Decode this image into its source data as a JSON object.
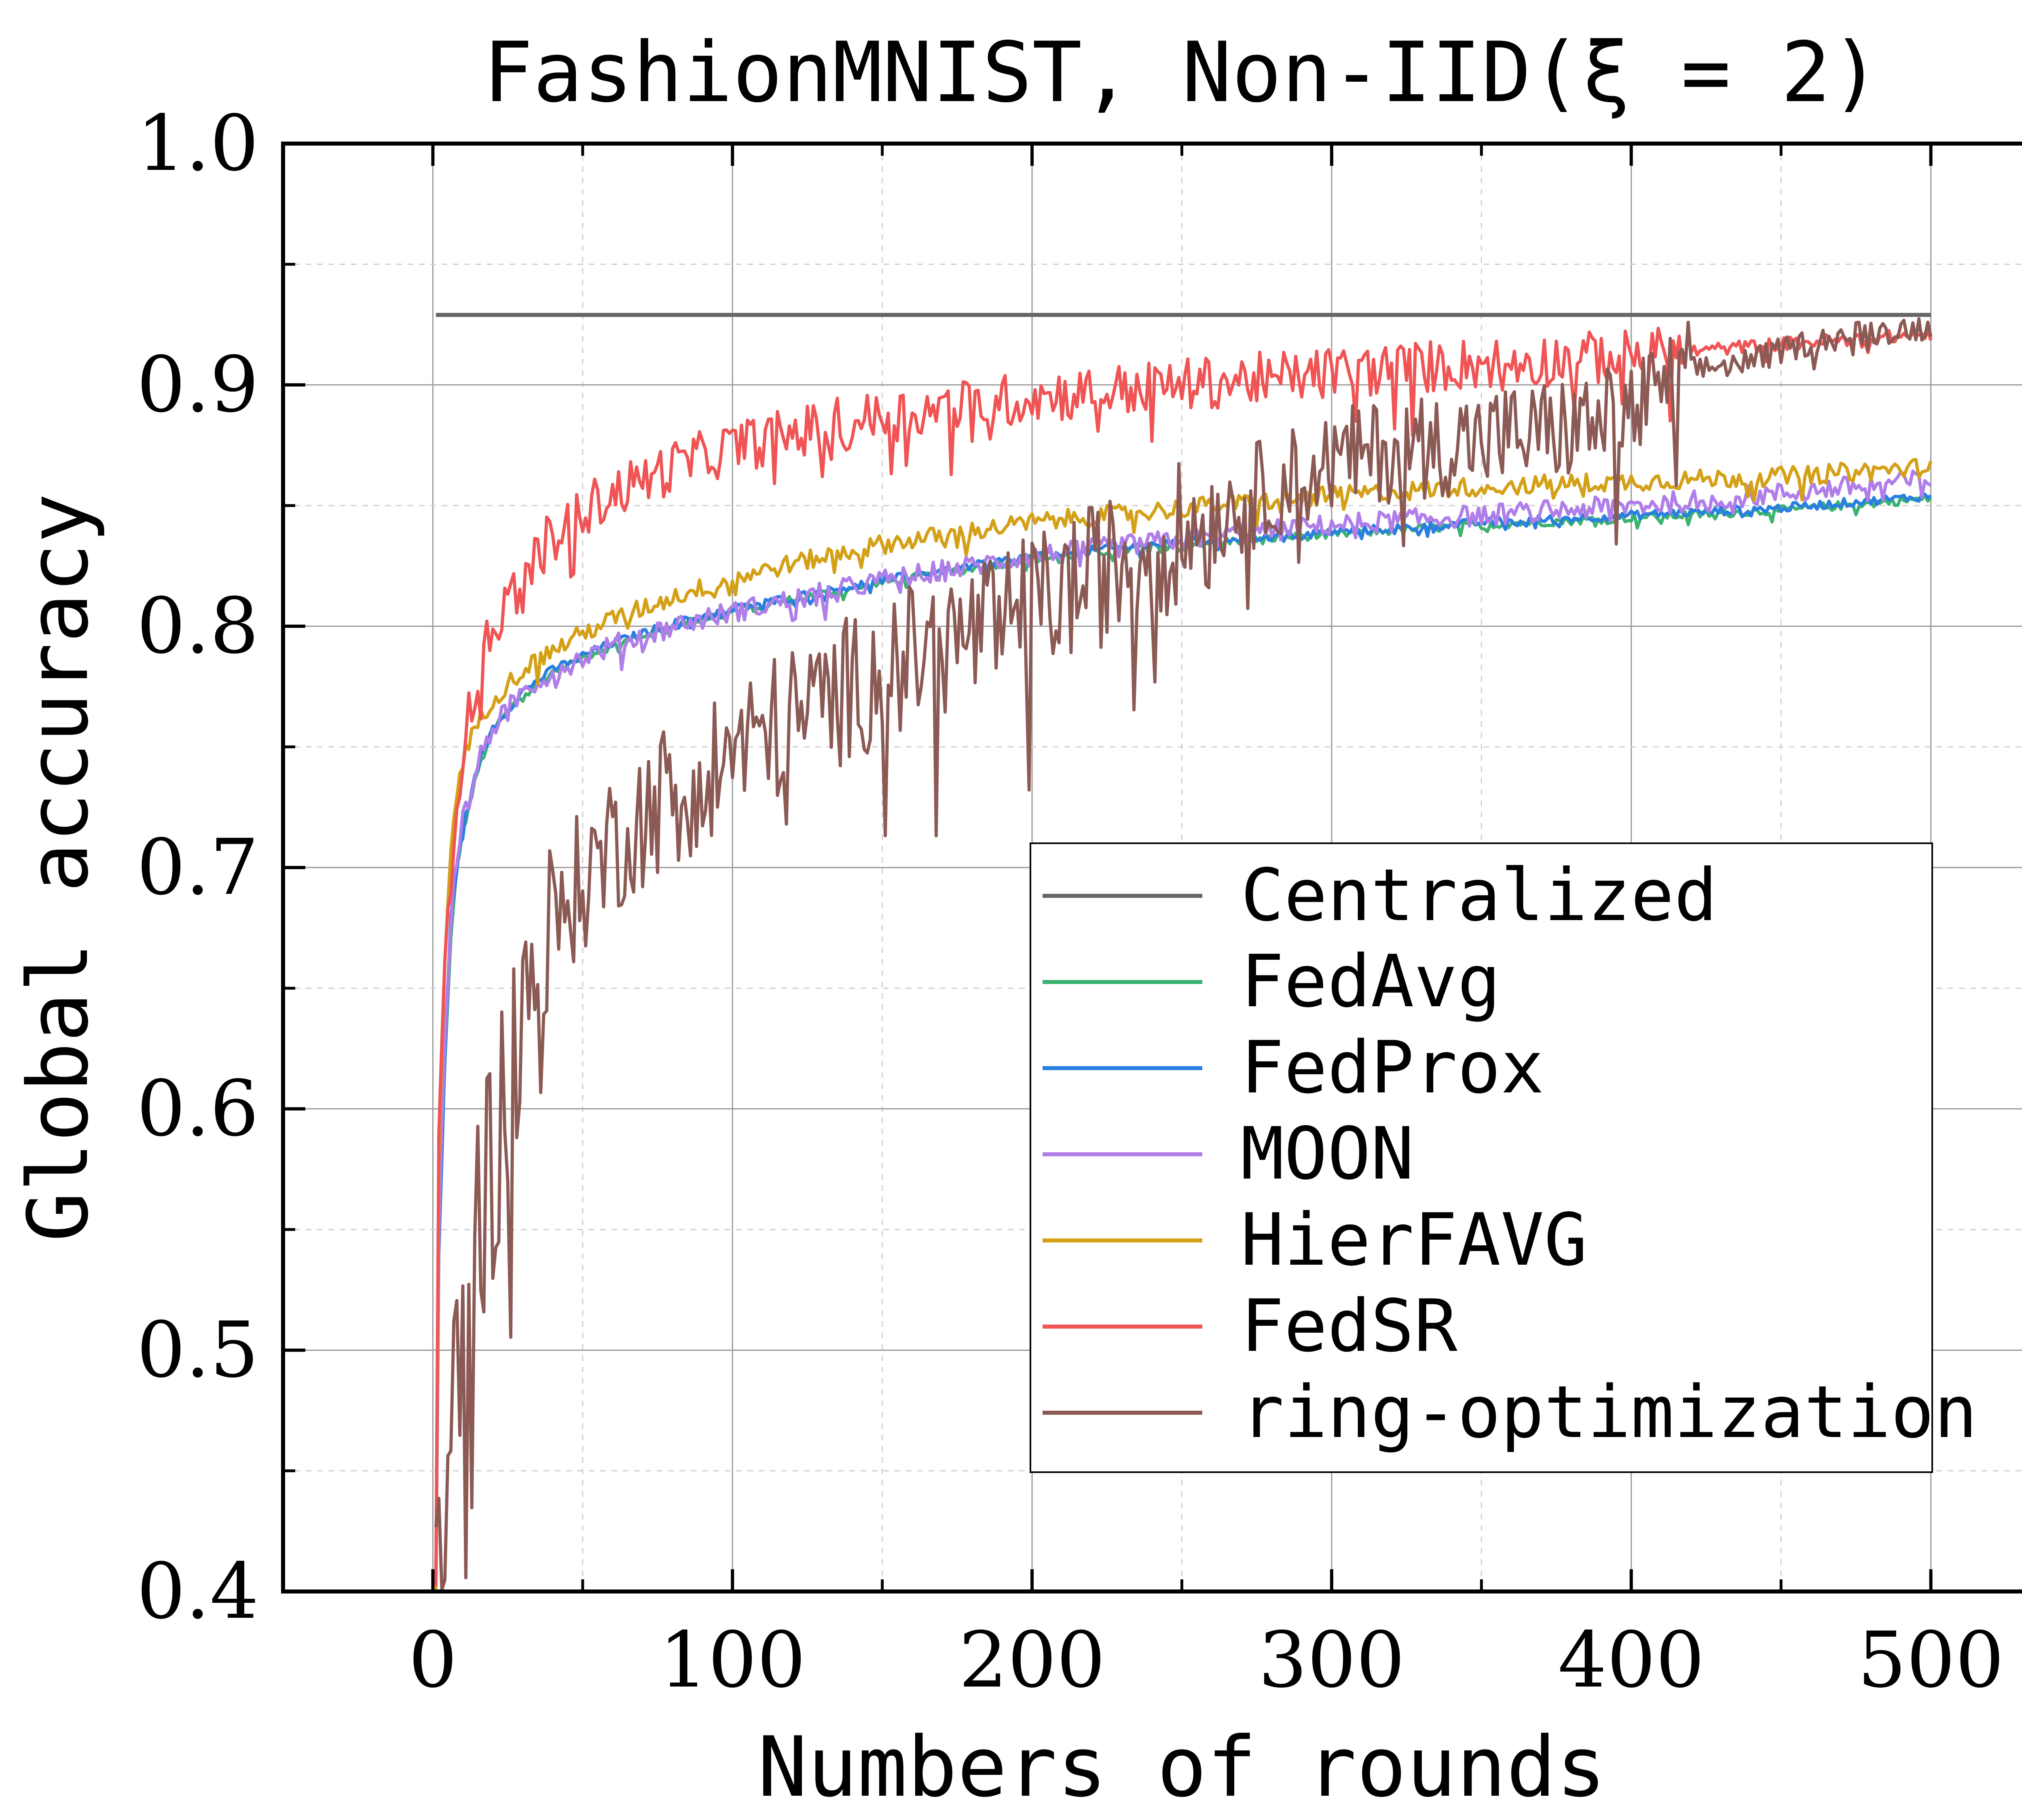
{
  "chart_data": {
    "type": "line",
    "title": "FashionMNIST, Non-IID(ξ = 2)",
    "xlabel": "Numbers of rounds",
    "ylabel": "Global accuracy",
    "xlim": [
      -50,
      550
    ],
    "ylim": [
      0.4,
      1.0
    ],
    "xticks": [
      0,
      100,
      200,
      300,
      400,
      500
    ],
    "xtick_labels": [
      "0",
      "100",
      "200",
      "300",
      "400",
      "500"
    ],
    "yticks": [
      0.4,
      0.5,
      0.6,
      0.7,
      0.8,
      0.9,
      1.0
    ],
    "ytick_labels": [
      "0.4",
      "0.5",
      "0.6",
      "0.7",
      "0.8",
      "0.9",
      "1.0"
    ],
    "grid": true,
    "legend_position": "lower-right",
    "series": [
      {
        "name": "Centralized",
        "color": "#666666",
        "x": [
          1,
          500
        ],
        "y": [
          0.929,
          0.929
        ]
      },
      {
        "name": "FedAvg",
        "color": "#3cb371",
        "x": [
          1,
          2,
          4,
          6,
          8,
          10,
          15,
          20,
          30,
          40,
          50,
          60,
          80,
          100,
          120,
          150,
          200,
          250,
          300,
          350,
          400,
          450,
          500
        ],
        "y": [
          0.4,
          0.55,
          0.62,
          0.67,
          0.7,
          0.715,
          0.74,
          0.757,
          0.772,
          0.781,
          0.787,
          0.792,
          0.8,
          0.806,
          0.811,
          0.818,
          0.828,
          0.834,
          0.838,
          0.842,
          0.845,
          0.848,
          0.853
        ]
      },
      {
        "name": "FedProx",
        "color": "#2a7fe0",
        "x": [
          1,
          2,
          4,
          6,
          8,
          10,
          15,
          20,
          30,
          40,
          50,
          60,
          80,
          100,
          120,
          150,
          200,
          250,
          300,
          350,
          400,
          450,
          500
        ],
        "y": [
          0.4,
          0.54,
          0.62,
          0.68,
          0.7,
          0.716,
          0.742,
          0.758,
          0.773,
          0.782,
          0.788,
          0.793,
          0.801,
          0.807,
          0.812,
          0.819,
          0.829,
          0.835,
          0.839,
          0.843,
          0.846,
          0.849,
          0.854
        ]
      },
      {
        "name": "MOON",
        "color": "#b07ee8",
        "x": [
          1,
          2,
          4,
          6,
          8,
          10,
          15,
          20,
          30,
          40,
          50,
          60,
          80,
          100,
          120,
          150,
          200,
          250,
          300,
          350,
          400,
          450,
          500
        ],
        "y": [
          0.4,
          0.55,
          0.63,
          0.68,
          0.705,
          0.72,
          0.743,
          0.758,
          0.773,
          0.781,
          0.787,
          0.792,
          0.8,
          0.806,
          0.811,
          0.819,
          0.829,
          0.836,
          0.842,
          0.846,
          0.85,
          0.855,
          0.861
        ]
      },
      {
        "name": "HierFAVG",
        "color": "#d4a017",
        "x": [
          1,
          2,
          4,
          6,
          8,
          10,
          15,
          20,
          30,
          40,
          50,
          60,
          80,
          100,
          120,
          150,
          200,
          250,
          300,
          350,
          400,
          450,
          500
        ],
        "y": [
          0.4,
          0.58,
          0.66,
          0.71,
          0.73,
          0.745,
          0.76,
          0.77,
          0.782,
          0.79,
          0.797,
          0.803,
          0.812,
          0.82,
          0.826,
          0.834,
          0.843,
          0.849,
          0.854,
          0.858,
          0.86,
          0.862,
          0.866
        ]
      },
      {
        "name": "FedSR",
        "color": "#f05454",
        "x": [
          1,
          2,
          4,
          6,
          8,
          10,
          15,
          20,
          30,
          40,
          50,
          60,
          80,
          100,
          120,
          150,
          200,
          250,
          300,
          350,
          400,
          450,
          500
        ],
        "y": [
          0.4,
          0.58,
          0.66,
          0.7,
          0.73,
          0.75,
          0.78,
          0.8,
          0.82,
          0.838,
          0.848,
          0.855,
          0.866,
          0.874,
          0.88,
          0.887,
          0.895,
          0.9,
          0.905,
          0.909,
          0.912,
          0.917,
          0.921
        ]
      },
      {
        "name": "ring-optimization",
        "color": "#8c5a55",
        "x": [
          1,
          3,
          5,
          8,
          12,
          16,
          20,
          25,
          30,
          35,
          40,
          45,
          50,
          60,
          70,
          80,
          100,
          120,
          140,
          160,
          180,
          200,
          220,
          240,
          260,
          280,
          300,
          320,
          340,
          360,
          380,
          400,
          420,
          440,
          460,
          480,
          500
        ],
        "y": [
          0.38,
          0.4,
          0.44,
          0.49,
          0.53,
          0.56,
          0.58,
          0.61,
          0.635,
          0.655,
          0.672,
          0.685,
          0.695,
          0.71,
          0.722,
          0.733,
          0.748,
          0.762,
          0.775,
          0.787,
          0.797,
          0.808,
          0.82,
          0.832,
          0.845,
          0.858,
          0.868,
          0.873,
          0.876,
          0.879,
          0.882,
          0.888,
          0.906,
          0.91,
          0.918,
          0.922,
          0.924
        ]
      }
    ]
  }
}
